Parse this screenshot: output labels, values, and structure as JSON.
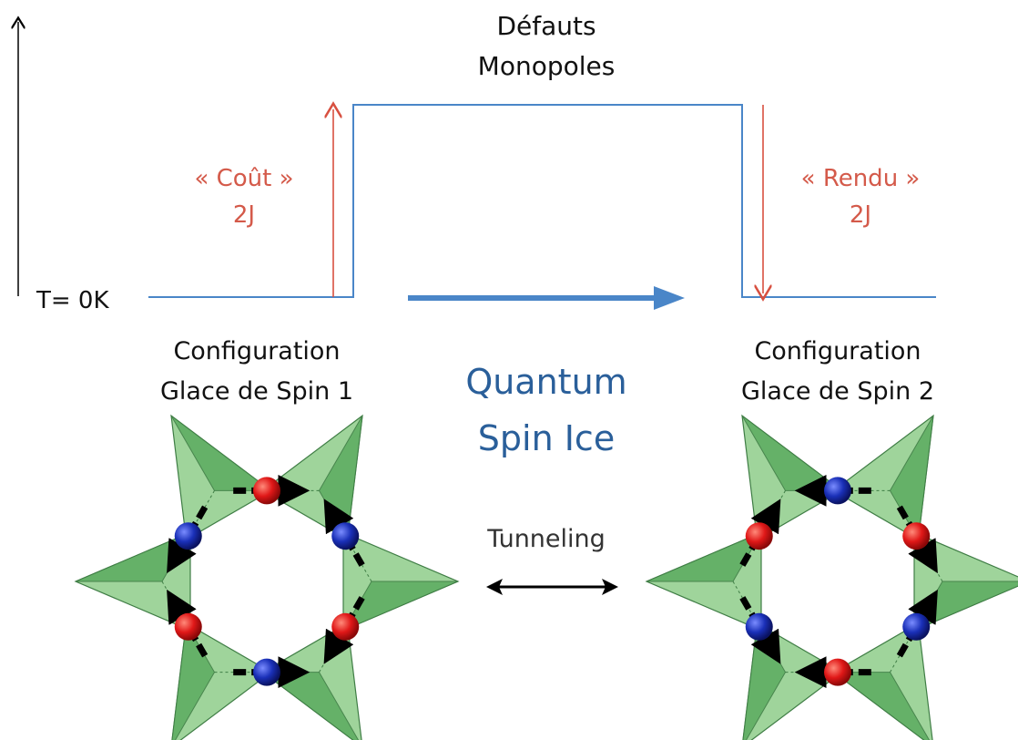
{
  "energy": {
    "defects_line1": "Défauts",
    "defects_line2": "Monopoles",
    "cost_line1": "« Coût »",
    "cost_line2": "2J",
    "return_line1": "« Rendu »",
    "return_line2": "2J",
    "ground_label": "T= 0K"
  },
  "config1": {
    "line1": "Configuration",
    "line2": "Glace de Spin 1"
  },
  "config2": {
    "line1": "Configuration",
    "line2": "Glace de Spin 2"
  },
  "center": {
    "line1": "Quantum",
    "line2": "Spin Ice"
  },
  "tunneling": "Tunneling",
  "colors": {
    "energy_line": "#4a86c8",
    "red_text": "#d45a4a",
    "blue_text": "#2a5f9a",
    "red_arrow": "#d85040",
    "tetra_fill": "#9fd49b",
    "tetra_dark": "#5fae63",
    "red_spin": "#e01818",
    "blue_spin": "#1a30b8"
  }
}
